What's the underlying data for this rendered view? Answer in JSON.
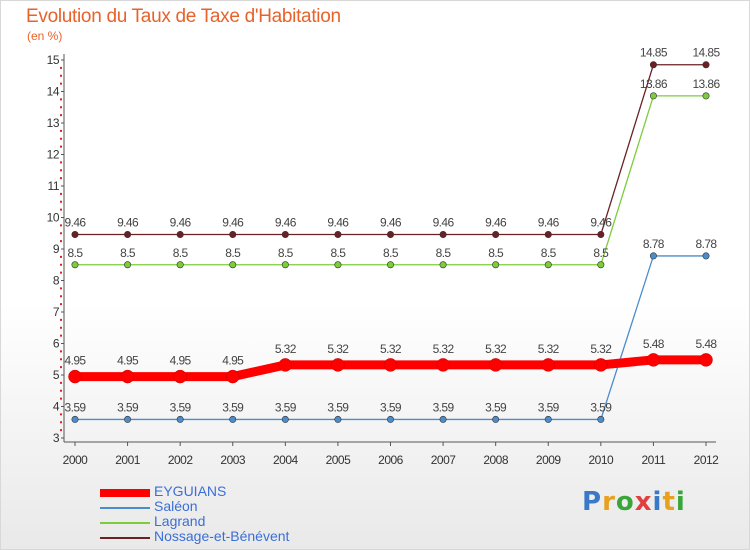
{
  "chart_data": {
    "type": "line",
    "title": "Evolution du Taux de Taxe d'Habitation",
    "subtitle": "(en %)",
    "x": [
      "2000",
      "2001",
      "2002",
      "2003",
      "2004",
      "2005",
      "2006",
      "2007",
      "2008",
      "2009",
      "2010",
      "2011",
      "2012"
    ],
    "ylim": [
      3,
      15
    ],
    "yticks": [
      "3",
      "4",
      "5",
      "6",
      "7",
      "8",
      "9",
      "10",
      "11",
      "12",
      "13",
      "14",
      "15"
    ],
    "grid": false,
    "legend_position": "bottom-left",
    "series": [
      {
        "name": "Nossage-et-Bénévent",
        "color": "#6b2024",
        "values": [
          9.46,
          9.46,
          9.46,
          9.46,
          9.46,
          9.46,
          9.46,
          9.46,
          9.46,
          9.46,
          9.46,
          14.85,
          14.85
        ],
        "labels": [
          "9.46",
          "9.46",
          "9.46",
          "9.46",
          "9.46",
          "9.46",
          "9.46",
          "9.46",
          "9.46",
          "9.46",
          "9.46",
          "14.85",
          "14.85"
        ]
      },
      {
        "name": "Lagrand",
        "color": "#7ccc3c",
        "values": [
          8.5,
          8.5,
          8.5,
          8.5,
          8.5,
          8.5,
          8.5,
          8.5,
          8.5,
          8.5,
          8.5,
          13.86,
          13.86
        ],
        "labels": [
          "8.5",
          "8.5",
          "8.5",
          "8.5",
          "8.5",
          "8.5",
          "8.5",
          "8.5",
          "8.5",
          "8.5",
          "8.5",
          "13.86",
          "13.86"
        ]
      },
      {
        "name": "Saléon",
        "color": "#4a8ccc",
        "values": [
          3.59,
          3.59,
          3.59,
          3.59,
          3.59,
          3.59,
          3.59,
          3.59,
          3.59,
          3.59,
          3.59,
          8.78,
          8.78
        ],
        "labels": [
          "3.59",
          "3.59",
          "3.59",
          "3.59",
          "3.59",
          "3.59",
          "3.59",
          "3.59",
          "3.59",
          "3.59",
          "3.59",
          "8.78",
          "8.78"
        ]
      },
      {
        "name": "EYGUIANS",
        "color": "#ff0000",
        "values": [
          4.95,
          4.95,
          4.95,
          4.95,
          5.32,
          5.32,
          5.32,
          5.32,
          5.32,
          5.32,
          5.32,
          5.48,
          5.48
        ],
        "labels": [
          "4.95",
          "4.95",
          "4.95",
          "4.95",
          "5.32",
          "5.32",
          "5.32",
          "5.32",
          "5.32",
          "5.32",
          "5.32",
          "5.48",
          "5.48"
        ]
      }
    ]
  },
  "legend": [
    {
      "name": "EYGUIANS",
      "color": "#ff0000"
    },
    {
      "name": "Saléon",
      "color": "#4a8ccc"
    },
    {
      "name": "Lagrand",
      "color": "#7ccc3c"
    },
    {
      "name": "Nossage-et-Bénévent",
      "color": "#6b2024"
    }
  ],
  "logo": {
    "text": "Proxiti",
    "letters": [
      {
        "char": "P",
        "color": "#3a78c8"
      },
      {
        "char": "r",
        "color": "#e8a020"
      },
      {
        "char": "o",
        "color": "#3aa63a"
      },
      {
        "char": "x",
        "color": "#e04040"
      },
      {
        "char": "i",
        "color": "#3a78c8"
      },
      {
        "char": "t",
        "color": "#e8a020"
      },
      {
        "char": "i",
        "color": "#3aa63a"
      }
    ]
  }
}
